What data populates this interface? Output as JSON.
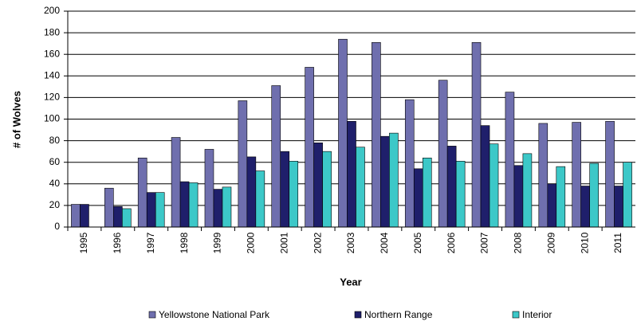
{
  "chart_data": {
    "type": "bar",
    "x_label": "Year",
    "y_label": "# of Wolves",
    "categories": [
      "1995",
      "1996",
      "1997",
      "1998",
      "1999",
      "2000",
      "2001",
      "2002",
      "2003",
      "2004",
      "2005",
      "2006",
      "2007",
      "2008",
      "2009",
      "2010",
      "2011"
    ],
    "series": [
      {
        "name": "Yellowstone National Park",
        "color": "#6f6fae",
        "values": [
          21,
          36,
          64,
          83,
          72,
          117,
          131,
          148,
          174,
          171,
          118,
          136,
          171,
          125,
          96,
          97,
          98
        ]
      },
      {
        "name": "Northern Range",
        "color": "#1f1f6b",
        "values": [
          21,
          19,
          32,
          42,
          35,
          65,
          70,
          78,
          98,
          84,
          54,
          75,
          94,
          57,
          40,
          38,
          38
        ]
      },
      {
        "name": "Interior",
        "color": "#3cc8c8",
        "values": [
          null,
          17,
          32,
          41,
          37,
          52,
          61,
          70,
          74,
          87,
          64,
          61,
          77,
          68,
          56,
          59,
          60
        ]
      }
    ],
    "ylim": [
      0,
      200
    ],
    "yticks": [
      0,
      20,
      40,
      60,
      80,
      100,
      120,
      140,
      160,
      180,
      200
    ],
    "grid": true,
    "legend": "bottom"
  }
}
